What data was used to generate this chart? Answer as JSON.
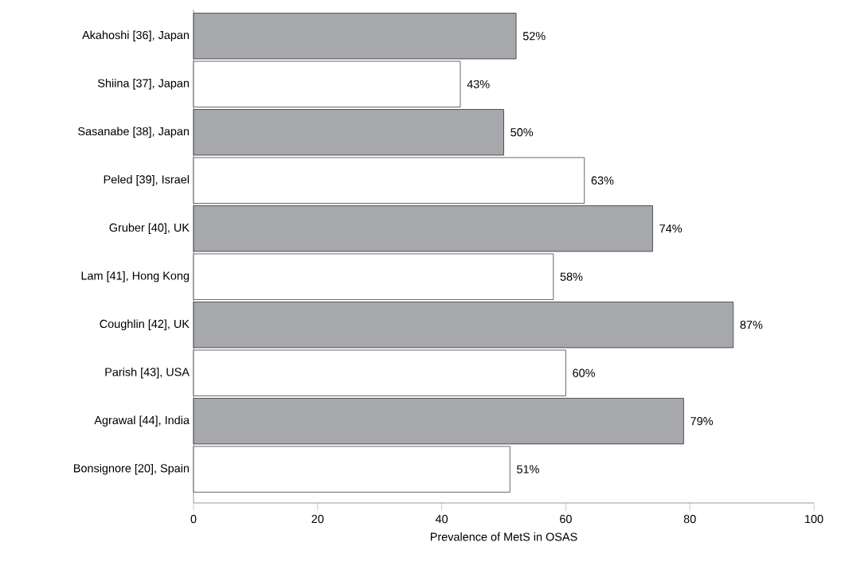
{
  "chart_data": {
    "type": "bar",
    "orientation": "horizontal",
    "xlabel": "Prevalence of MetS in OSAS",
    "categories": [
      "Akahoshi [36], Japan",
      "Shiina [37], Japan",
      "Sasanabe [38], Japan",
      "Peled [39], Israel",
      "Gruber [40], UK",
      "Lam [41], Hong Kong",
      "Coughlin [42], UK",
      "Parish [43], USA",
      "Agrawal [44], India",
      "Bonsignore [20], Spain"
    ],
    "values": [
      52,
      43,
      50,
      63,
      74,
      58,
      87,
      60,
      79,
      51
    ],
    "value_labels": [
      "52%",
      "43%",
      "50%",
      "63%",
      "74%",
      "58%",
      "87%",
      "60%",
      "79%",
      "51%"
    ],
    "colors": [
      "#a7a8ac",
      "#ffffff",
      "#a7a8ac",
      "#ffffff",
      "#a7a8ac",
      "#ffffff",
      "#a7a8ac",
      "#ffffff",
      "#a7a8ac",
      "#ffffff"
    ],
    "xlim": [
      0,
      100
    ],
    "xticks": [
      0,
      20,
      40,
      60,
      80,
      100
    ]
  }
}
